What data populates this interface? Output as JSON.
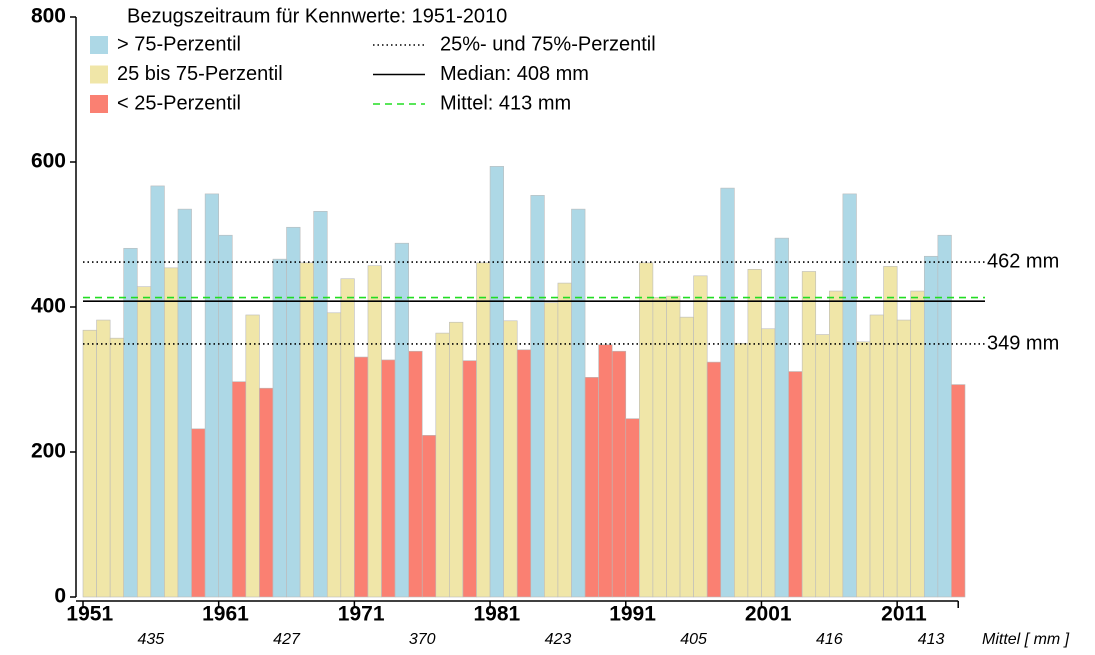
{
  "chart_data": {
    "type": "bar",
    "title": "Bezugszeitraum für Kennwerte: 1951-2010",
    "categories": [
      "1951",
      null,
      null,
      null,
      null,
      null,
      null,
      null,
      null,
      null,
      "1961",
      null,
      null,
      null,
      null,
      null,
      null,
      null,
      null,
      null,
      "1971",
      null,
      null,
      null,
      null,
      null,
      null,
      null,
      null,
      null,
      "1981",
      null,
      null,
      null,
      null,
      null,
      null,
      null,
      null,
      null,
      "1991",
      null,
      null,
      null,
      null,
      null,
      null,
      null,
      null,
      null,
      "2001",
      null,
      null,
      null,
      null,
      null,
      null,
      null,
      null,
      null,
      "2011",
      null,
      null,
      null,
      null
    ],
    "values": [
      368,
      382,
      357,
      481,
      428,
      567,
      454,
      535,
      232,
      556,
      499,
      297,
      389,
      288,
      466,
      510,
      461,
      532,
      392,
      439,
      331,
      457,
      327,
      488,
      339,
      223,
      364,
      379,
      326,
      461,
      594,
      381,
      341,
      554,
      406,
      433,
      535,
      303,
      348,
      339,
      246,
      461,
      413,
      415,
      386,
      443,
      324,
      564,
      350,
      452,
      370,
      495,
      311,
      449,
      362,
      422,
      556,
      352,
      389,
      456,
      382,
      422,
      470,
      499,
      293
    ],
    "colors": [
      "#f0e6a8",
      "#f0e6a8",
      "#f0e6a8",
      "#add8e6",
      "#f0e6a8",
      "#add8e6",
      "#f0e6a8",
      "#add8e6",
      "#fa8072",
      "#add8e6",
      "#add8e6",
      "#fa8072",
      "#f0e6a8",
      "#fa8072",
      "#add8e6",
      "#add8e6",
      "#f0e6a8",
      "#add8e6",
      "#f0e6a8",
      "#f0e6a8",
      "#fa8072",
      "#f0e6a8",
      "#fa8072",
      "#add8e6",
      "#fa8072",
      "#fa8072",
      "#f0e6a8",
      "#f0e6a8",
      "#fa8072",
      "#f0e6a8",
      "#add8e6",
      "#f0e6a8",
      "#fa8072",
      "#add8e6",
      "#f0e6a8",
      "#f0e6a8",
      "#add8e6",
      "#fa8072",
      "#fa8072",
      "#fa8072",
      "#fa8072",
      "#f0e6a8",
      "#f0e6a8",
      "#f0e6a8",
      "#f0e6a8",
      "#f0e6a8",
      "#fa8072",
      "#add8e6",
      "#f0e6a8",
      "#f0e6a8",
      "#f0e6a8",
      "#add8e6",
      "#fa8072",
      "#f0e6a8",
      "#f0e6a8",
      "#f0e6a8",
      "#add8e6",
      "#f0e6a8",
      "#f0e6a8",
      "#f0e6a8",
      "#f0e6a8",
      "#f0e6a8",
      "#add8e6",
      "#add8e6",
      "#fa8072"
    ],
    "legend_classes": [
      {
        "name": "> 75-Perzentil",
        "color": "#add8e6"
      },
      {
        "name": "25 bis 75-Perzentil",
        "color": "#f0e6a8"
      },
      {
        "name": "< 25-Perzentil",
        "color": "#fa8072"
      }
    ],
    "reference_lines": [
      {
        "name": "25%- und 75%-Perzentil",
        "style": "dotted",
        "color": "#000000",
        "values": [
          462,
          349
        ],
        "value_labels": [
          "462 mm",
          "349 mm"
        ]
      },
      {
        "name": "Median: 408 mm",
        "style": "solid",
        "color": "#000000",
        "values": [
          408
        ]
      },
      {
        "name": "Mittel: 413 mm",
        "style": "dashed",
        "color": "#22dd22",
        "values": [
          413
        ]
      }
    ],
    "decade_means": {
      "label": "Mittel [ mm ]",
      "values": [
        435,
        427,
        370,
        423,
        405,
        416,
        413
      ]
    },
    "ylim": [
      0,
      800
    ],
    "yticks": [
      0,
      200,
      400,
      600,
      800
    ]
  }
}
